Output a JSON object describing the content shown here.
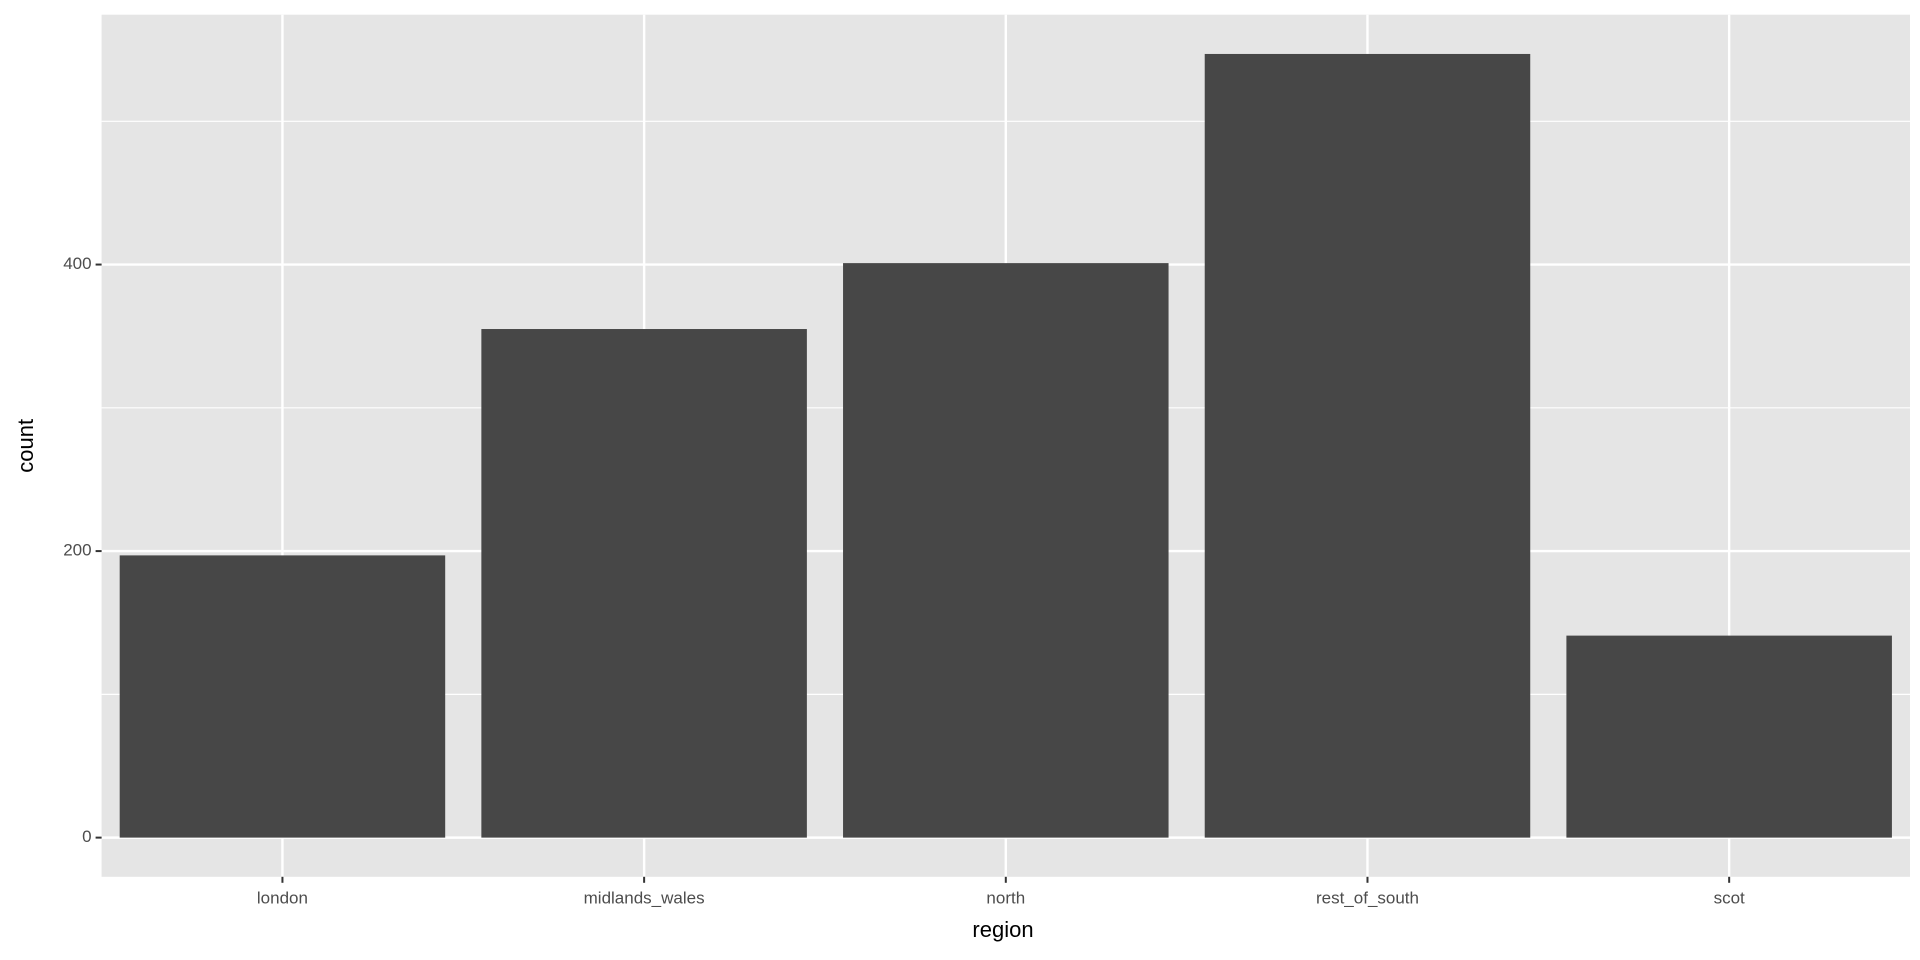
{
  "chart_data": {
    "type": "bar",
    "x_label": "region",
    "y_label": "count",
    "categories": [
      "london",
      "midlands_wales",
      "north",
      "rest_of_south",
      "scot"
    ],
    "values": [
      197,
      355,
      401,
      547,
      141
    ],
    "color": "#474747",
    "ylim": [
      -27.35,
      574.4
    ],
    "yticks": [
      0,
      200,
      400
    ],
    "y_minor_ticks": [
      100,
      300,
      500
    ],
    "grid": true
  }
}
